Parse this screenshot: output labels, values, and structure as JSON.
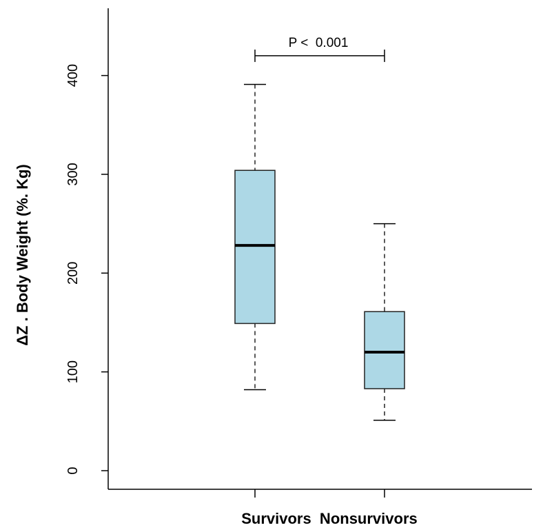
{
  "chart_data": {
    "type": "box",
    "title": "",
    "xlabel": "",
    "ylabel": "ΔZ . Body Weight (%. Kg)",
    "ylim": [
      0,
      460
    ],
    "yticks": [
      0,
      100,
      200,
      300,
      400
    ],
    "ytick_labels": [
      "0",
      "100",
      "200",
      "300",
      "400"
    ],
    "categories": [
      "Survivors",
      "Nonsurvivors"
    ],
    "category_label_text": "Survivors  Nonsurvivors",
    "grid": false,
    "box_color": "#add8e6",
    "boxes": [
      {
        "category": "Survivors",
        "whisker_low": 82,
        "q1": 149,
        "median": 228,
        "q3": 304,
        "whisker_high": 391
      },
      {
        "category": "Nonsurvivors",
        "whisker_low": 51,
        "q1": 83,
        "median": 120,
        "q3": 161,
        "whisker_high": 250
      }
    ],
    "annotation": {
      "text": "P <  0.001",
      "between": [
        "Survivors",
        "Nonsurvivors"
      ],
      "y": 420
    }
  }
}
